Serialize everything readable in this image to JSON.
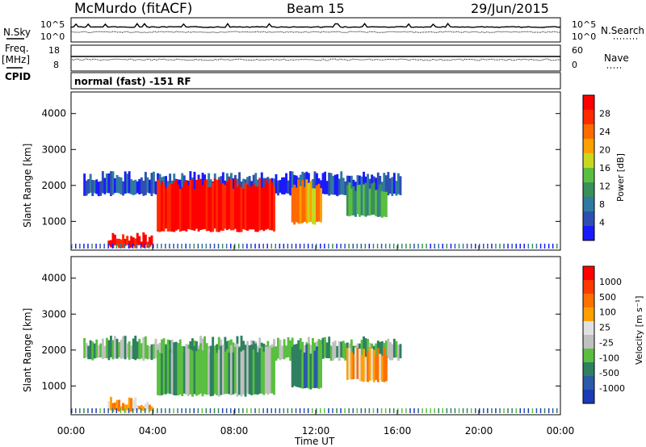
{
  "header": {
    "station": "McMurdo (fitACF)",
    "beam": "Beam 15",
    "date": "29/Jun/2015"
  },
  "left_labels": {
    "nsky": "N.Sky",
    "freq": "Freq.",
    "freq_unit": "[MHz]",
    "cpid": "CPID"
  },
  "right_labels": {
    "nsearch": "N.Search",
    "nave": "Nave"
  },
  "cpid_text": "normal (fast) -151 RF",
  "colors": {
    "power_scale": [
      "#1a1aff",
      "#2e4fb0",
      "#2f7aa0",
      "#3a8f5a",
      "#5abf40",
      "#c8d820",
      "#ffa000",
      "#ff6a00",
      "#ff2a00",
      "#ff0000"
    ],
    "velocity_scale": [
      "#1a3ab8",
      "#2a5aa8",
      "#2e8060",
      "#5abf40",
      "#c0c0c0",
      "#e0e0e0",
      "#ffa000",
      "#ff7000",
      "#ff3a00",
      "#ff0000"
    ]
  },
  "chart_data": [
    {
      "type": "line",
      "name": "noise-panel",
      "yticks_left": [
        "10^5",
        "10^0"
      ],
      "yticks_right": [
        "10^5",
        "10^0"
      ]
    },
    {
      "type": "line",
      "name": "freq-panel",
      "yticks_left": [
        "18",
        "8"
      ],
      "yticks_right": [
        "60",
        "0"
      ]
    },
    {
      "type": "heatmap",
      "name": "power",
      "ylabel": "Slant Range [km]",
      "yticks": [
        1000,
        2000,
        3000,
        4000
      ],
      "ylim": [
        200,
        4600
      ],
      "colorbar_label": "Power [dB]",
      "colorbar_ticks": [
        "4",
        "8",
        "12",
        "16",
        "20",
        "24",
        "28"
      ],
      "regions": [
        {
          "t0": 0.6,
          "t1": 16.2,
          "r0": 1700,
          "r1": 2400,
          "level": 1
        },
        {
          "t0": 4.2,
          "t1": 10.0,
          "r0": 700,
          "r1": 2200,
          "level": 9
        },
        {
          "t0": 1.8,
          "t1": 4.0,
          "r0": 250,
          "r1": 700,
          "level": 9
        },
        {
          "t0": 10.8,
          "t1": 12.3,
          "r0": 900,
          "r1": 2200,
          "level": 6
        },
        {
          "t0": 13.5,
          "t1": 15.5,
          "r0": 1100,
          "r1": 2100,
          "level": 3
        }
      ]
    },
    {
      "type": "heatmap",
      "name": "velocity",
      "ylabel": "Slant Range [km]",
      "xlabel": "Time UT",
      "yticks": [
        1000,
        2000,
        3000,
        4000
      ],
      "xticks": [
        "00:00",
        "04:00",
        "08:00",
        "12:00",
        "16:00",
        "20:00",
        "00:00"
      ],
      "ylim": [
        200,
        4600
      ],
      "colorbar_label": "Velocity [m s⁻¹]",
      "colorbar_ticks": [
        "-1000",
        "-500",
        "-100",
        "-25",
        "25",
        "100",
        "500",
        "1000"
      ],
      "regions": [
        {
          "t0": 0.6,
          "t1": 16.2,
          "r0": 1700,
          "r1": 2400,
          "level": 3
        },
        {
          "t0": 4.2,
          "t1": 10.0,
          "r0": 700,
          "r1": 2200,
          "level": 3
        },
        {
          "t0": 1.8,
          "t1": 4.0,
          "r0": 250,
          "r1": 700,
          "level": 6
        },
        {
          "t0": 10.8,
          "t1": 12.3,
          "r0": 900,
          "r1": 2200,
          "level": 2
        },
        {
          "t0": 13.5,
          "t1": 15.5,
          "r0": 1100,
          "r1": 2100,
          "level": 6
        }
      ]
    }
  ]
}
